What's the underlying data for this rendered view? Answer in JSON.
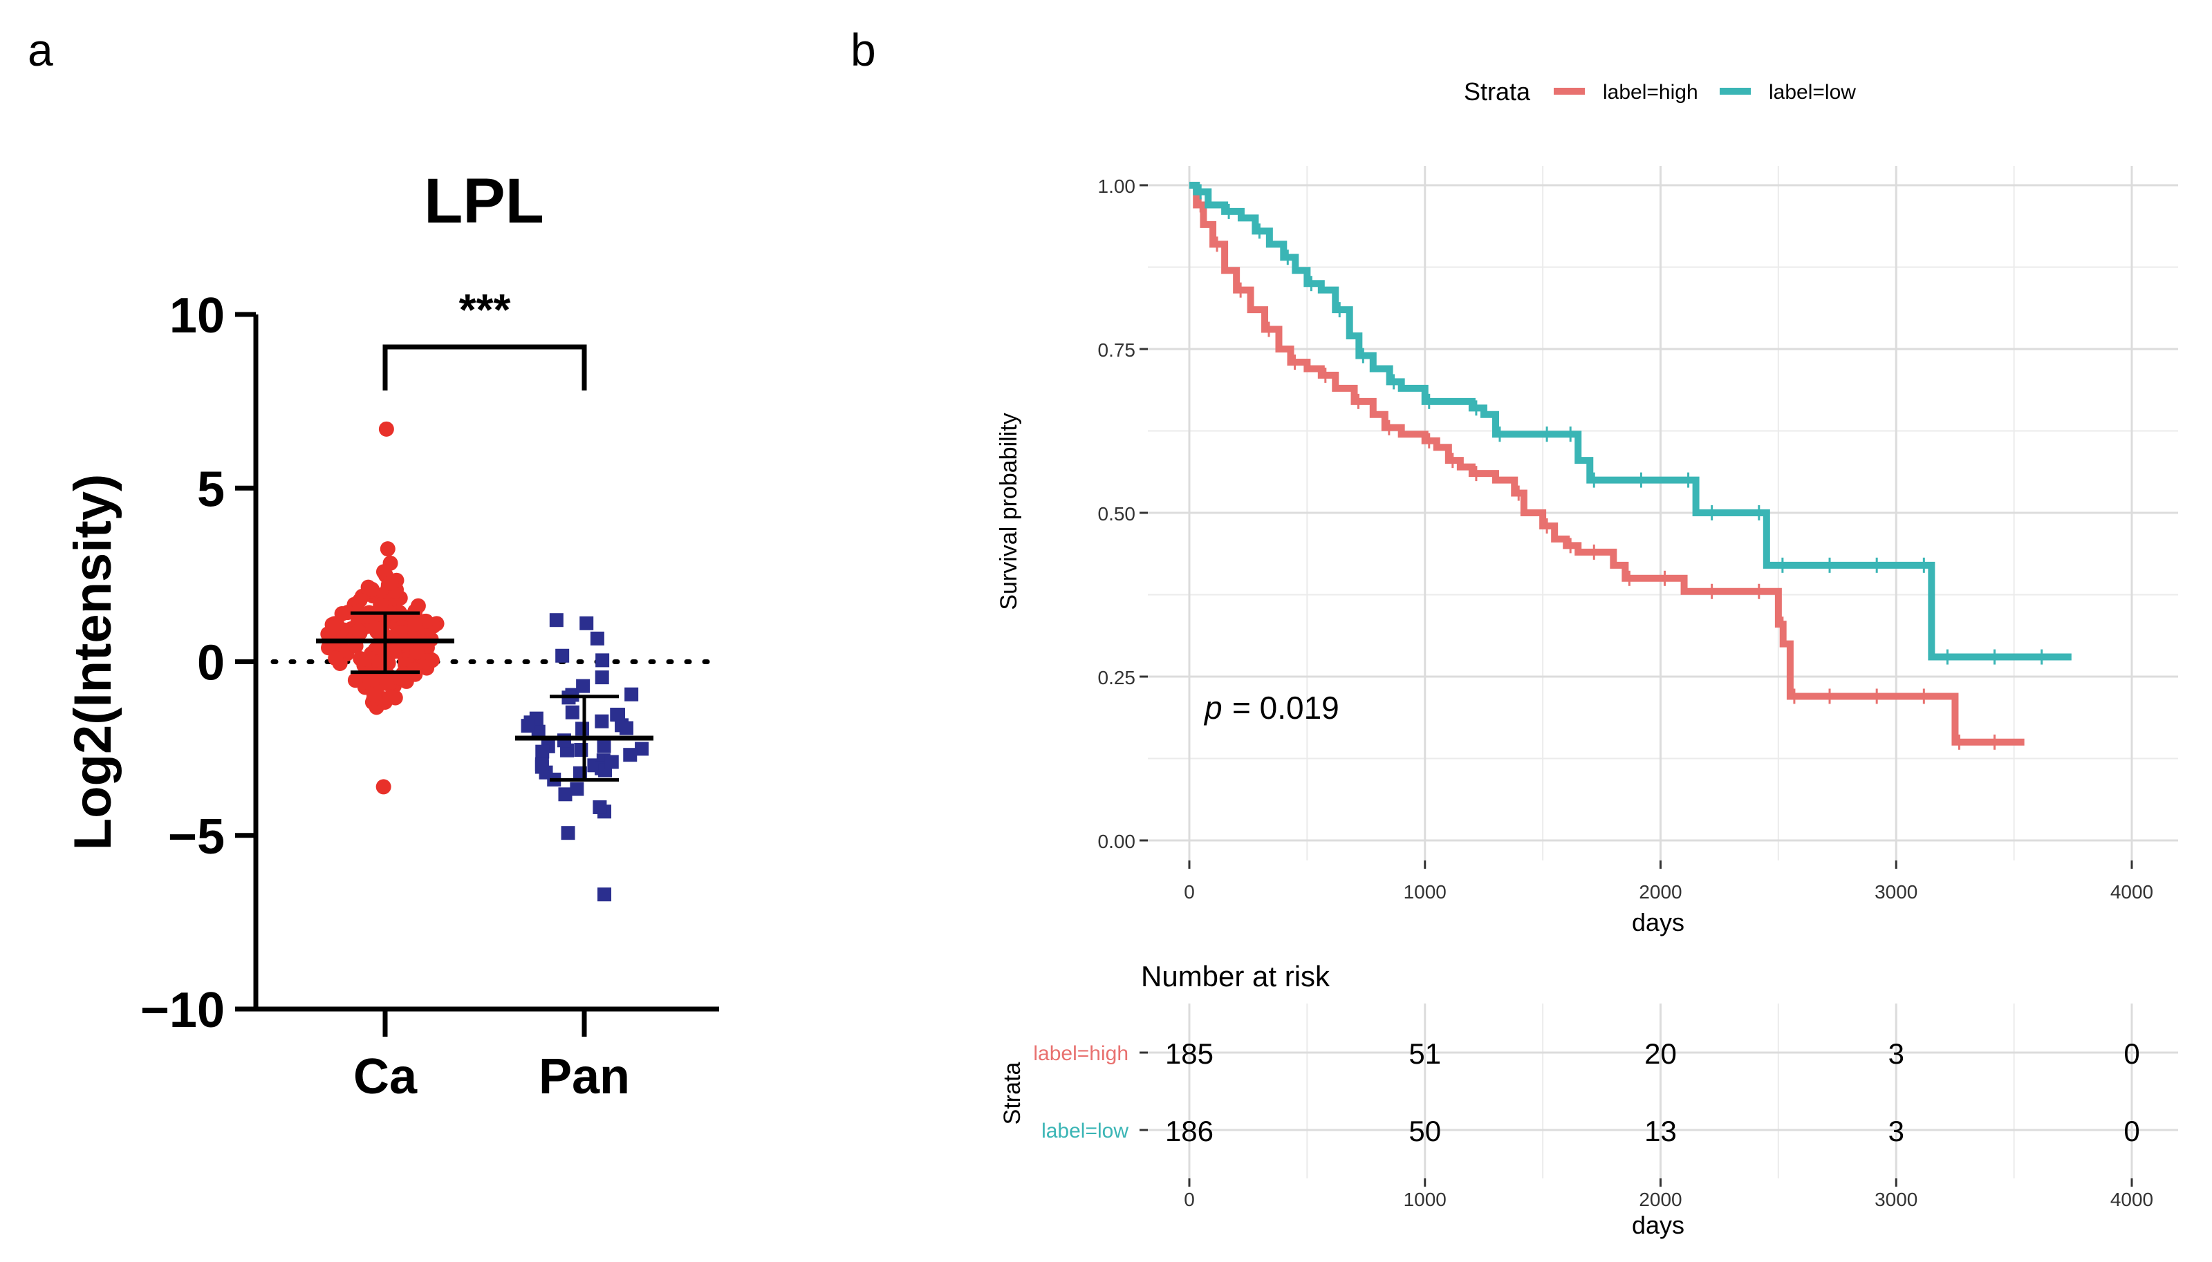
{
  "panel_a": {
    "label": "a",
    "chart_data": {
      "type": "scatter",
      "title": "LPL",
      "ylabel": "Log2(Intensity)",
      "xlabel": "",
      "categories": [
        "Ca",
        "Pan"
      ],
      "ylim": [
        -10,
        10
      ],
      "yticks": [
        "10",
        "5",
        "0",
        "−5",
        "−10"
      ],
      "yticks_values": [
        10,
        5,
        0,
        -5,
        -10
      ],
      "significance": "***",
      "reference_line": 0,
      "groups": [
        {
          "name": "Ca",
          "color": "#e8312a",
          "marker": "circle",
          "mean": 0.6,
          "sd_low": -0.3,
          "sd_high": 1.4,
          "min": -3.6,
          "max": 6.7,
          "n": 185
        },
        {
          "name": "Pan",
          "color": "#2b2f8f",
          "marker": "square",
          "mean": -2.2,
          "sd_low": -3.4,
          "sd_high": -1.0,
          "min": -6.7,
          "max": 1.2,
          "n": 45
        }
      ]
    }
  },
  "panel_b": {
    "label": "b",
    "legend": {
      "title": "Strata",
      "items": [
        {
          "label": "label=high",
          "color": "#e8716f"
        },
        {
          "label": "label=low",
          "color": "#3ab5b5"
        }
      ]
    },
    "chart_data": {
      "type": "line",
      "title": "",
      "xlabel": "days",
      "ylabel": "Survival probability",
      "xlim": [
        0,
        4000
      ],
      "ylim": [
        0,
        1
      ],
      "xticks": [
        "0",
        "1000",
        "2000",
        "3000",
        "4000"
      ],
      "xticks_values": [
        0,
        1000,
        2000,
        3000,
        4000
      ],
      "yticks": [
        "1.00",
        "0.75",
        "0.50",
        "0.25",
        "0.00"
      ],
      "yticks_values": [
        1.0,
        0.75,
        0.5,
        0.25,
        0.0
      ],
      "annotation": {
        "p_label": "p",
        "p_value": "= 0.019"
      },
      "series": [
        {
          "name": "label=high",
          "color": "#e8716f",
          "x": [
            0,
            30,
            60,
            100,
            150,
            200,
            260,
            320,
            380,
            430,
            500,
            560,
            620,
            700,
            780,
            830,
            900,
            1000,
            1050,
            1100,
            1150,
            1200,
            1300,
            1380,
            1420,
            1500,
            1550,
            1600,
            1650,
            1700,
            1800,
            1850,
            1900,
            2000,
            2100,
            2200,
            2300,
            2400,
            2480,
            2500,
            2520,
            2550,
            2600,
            2700,
            2800,
            2900,
            3000,
            3100,
            3200,
            3250,
            3300,
            3400,
            3500
          ],
          "y": [
            1.0,
            0.97,
            0.94,
            0.91,
            0.87,
            0.84,
            0.81,
            0.78,
            0.75,
            0.73,
            0.72,
            0.71,
            0.69,
            0.67,
            0.65,
            0.63,
            0.62,
            0.61,
            0.6,
            0.58,
            0.57,
            0.56,
            0.55,
            0.53,
            0.5,
            0.48,
            0.46,
            0.45,
            0.44,
            0.44,
            0.42,
            0.4,
            0.4,
            0.4,
            0.38,
            0.38,
            0.38,
            0.38,
            0.38,
            0.33,
            0.3,
            0.22,
            0.22,
            0.22,
            0.22,
            0.22,
            0.22,
            0.22,
            0.22,
            0.15,
            0.15,
            0.15,
            0.15
          ]
        },
        {
          "name": "label=low",
          "color": "#3ab5b5",
          "x": [
            0,
            30,
            80,
            150,
            220,
            280,
            340,
            400,
            450,
            500,
            560,
            620,
            680,
            720,
            780,
            850,
            900,
            1000,
            1100,
            1200,
            1250,
            1300,
            1400,
            1500,
            1550,
            1600,
            1650,
            1700,
            1800,
            1900,
            2000,
            2100,
            2150,
            2200,
            2300,
            2400,
            2450,
            2500,
            2600,
            2700,
            2800,
            2900,
            3000,
            3100,
            3150,
            3200,
            3300,
            3400,
            3500,
            3600,
            3700
          ],
          "y": [
            1.0,
            0.99,
            0.97,
            0.96,
            0.95,
            0.93,
            0.91,
            0.89,
            0.87,
            0.85,
            0.84,
            0.81,
            0.77,
            0.74,
            0.72,
            0.7,
            0.69,
            0.67,
            0.67,
            0.66,
            0.65,
            0.62,
            0.62,
            0.62,
            0.62,
            0.62,
            0.58,
            0.55,
            0.55,
            0.55,
            0.55,
            0.55,
            0.5,
            0.5,
            0.5,
            0.5,
            0.42,
            0.42,
            0.42,
            0.42,
            0.42,
            0.42,
            0.42,
            0.42,
            0.28,
            0.28,
            0.28,
            0.28,
            0.28,
            0.28,
            0.28
          ]
        }
      ]
    },
    "risk_table": {
      "title": "Number at risk",
      "strata_label": "Strata",
      "xlabel": "days",
      "rows": [
        {
          "label": "label=high",
          "color": "#e8716f",
          "values": [
            "185",
            "51",
            "20",
            "3",
            "0"
          ]
        },
        {
          "label": "label=low",
          "color": "#3ab5b5",
          "values": [
            "186",
            "50",
            "13",
            "3",
            "0"
          ]
        }
      ]
    }
  }
}
